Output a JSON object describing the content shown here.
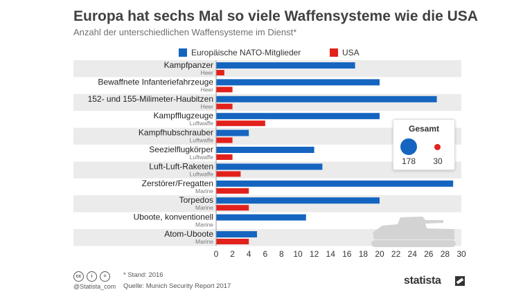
{
  "header": {
    "title": "Europa hat sechs Mal so viele Waffensysteme wie die USA",
    "subtitle": "Anzahl der unterschiedlichen Waffensysteme im Dienst*"
  },
  "colors": {
    "eu": "#1565c0",
    "us": "#e2211c",
    "band": "#ebebeb"
  },
  "chart_data": {
    "type": "bar",
    "orientation": "horizontal",
    "title": "Europa hat sechs Mal so viele Waffensysteme wie die USA",
    "subtitle": "Anzahl der unterschiedlichen Waffensysteme im Dienst*",
    "categories": [
      "Kampfpanzer",
      "Bewaffnete Infanteriefahrzeuge",
      "152- und 155-Milimeter-Haubitzen",
      "Kampfflugzeuge",
      "Kampfhubschrauber",
      "Seezielflugkörper",
      "Luft-Luft-Raketen",
      "Zerstörer/Fregatten",
      "Torpedos",
      "Uboote, konventionell",
      "Atom-Uboote"
    ],
    "branches": [
      "Heer",
      "Heer",
      "Heer",
      "Luftwaffe",
      "Luftwaffe",
      "Luftwaffe",
      "Luftwaffe",
      "Marine",
      "Marine",
      "Marine",
      "Marine"
    ],
    "series": [
      {
        "name": "Europäische NATO-Mitglieder",
        "values": [
          17,
          20,
          27,
          20,
          4,
          12,
          13,
          29,
          20,
          11,
          5
        ]
      },
      {
        "name": "USA",
        "values": [
          1,
          2,
          2,
          6,
          2,
          2,
          3,
          4,
          4,
          0,
          4
        ]
      }
    ],
    "xlim": [
      0,
      30
    ],
    "xticks": [
      0,
      2,
      4,
      6,
      8,
      10,
      12,
      14,
      16,
      18,
      20,
      22,
      24,
      26,
      28,
      30
    ],
    "legend": "top-center",
    "totals": {
      "title": "Gesamt",
      "eu": "178",
      "us": "30"
    }
  },
  "footer": {
    "note": "* Stand: 2016",
    "source": "Quelle: Munich Security Report 2017",
    "handle": "@Statista_com",
    "brand": "statista",
    "license_icons": [
      "cc",
      "i",
      "="
    ]
  }
}
